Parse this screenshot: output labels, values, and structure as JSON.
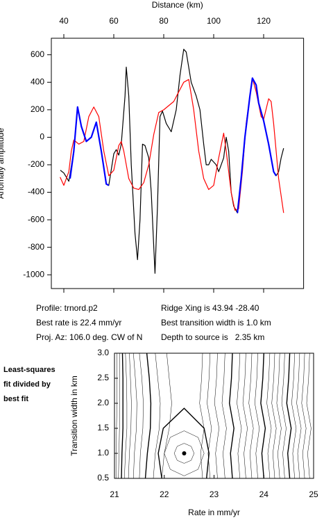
{
  "chart_data": [
    {
      "type": "line",
      "x_label": "Distance (km)",
      "y_label": "Anomaly amplitude",
      "xlim": [
        35,
        136
      ],
      "ylim": [
        -1100,
        720
      ],
      "xticks": [
        40,
        60,
        80,
        100,
        120
      ],
      "yticks": [
        -1000,
        -800,
        -600,
        -400,
        -200,
        0,
        200,
        400,
        600
      ],
      "series": [
        {
          "color": "#000000",
          "x": [
            38.6,
            40,
            42,
            44,
            45.5,
            47,
            49,
            51,
            53,
            55,
            57,
            58,
            60,
            61,
            62,
            63,
            64.5,
            65,
            66,
            67,
            68.5,
            69.5,
            70.5,
            71.5,
            72.5,
            74,
            75,
            76.5,
            77.5,
            78.5,
            79.5,
            81,
            83,
            85,
            86.5,
            88,
            89,
            91,
            93,
            94.5,
            96,
            97,
            98,
            99,
            101,
            102,
            104,
            105,
            106,
            107,
            108,
            109.5,
            111,
            112.5,
            114.5,
            115.5,
            117,
            118,
            120,
            122,
            124,
            125,
            126,
            127,
            128
          ],
          "values": [
            -240,
            -260,
            -320,
            -100,
            220,
            80,
            -30,
            0,
            110,
            -100,
            -340,
            -350,
            -120,
            -90,
            -130,
            -50,
            300,
            510,
            300,
            -200,
            -700,
            -890,
            -600,
            -50,
            -60,
            -150,
            -400,
            -990,
            -500,
            150,
            190,
            100,
            40,
            200,
            450,
            640,
            620,
            400,
            300,
            200,
            -50,
            -200,
            -200,
            -160,
            -200,
            -250,
            -150,
            0,
            -100,
            -400,
            -500,
            -550,
            -300,
            0,
            300,
            430,
            380,
            250,
            120,
            -50,
            -250,
            -280,
            -250,
            -150,
            -80
          ]
        },
        {
          "color": "#ff0000",
          "x": [
            38.5,
            40,
            42,
            43,
            44,
            46,
            48,
            50,
            52,
            54,
            56,
            58,
            60,
            62,
            63,
            64,
            66,
            68,
            70,
            72,
            74,
            76,
            78,
            80,
            84,
            88,
            90,
            92,
            94,
            96,
            98,
            100,
            102,
            104,
            105,
            107,
            108.5,
            110,
            111.5,
            113,
            115.5,
            117,
            119,
            120,
            122,
            123,
            124,
            126,
            128
          ],
          "values": [
            -290,
            -350,
            -250,
            -100,
            -20,
            -50,
            -30,
            150,
            220,
            150,
            -100,
            -280,
            -240,
            -60,
            -30,
            -100,
            -300,
            -370,
            -380,
            -330,
            -200,
            20,
            180,
            200,
            260,
            400,
            420,
            200,
            -100,
            -300,
            -380,
            -350,
            -150,
            30,
            -100,
            -400,
            -530,
            -520,
            -250,
            100,
            430,
            330,
            150,
            130,
            280,
            260,
            100,
            -300,
            -550
          ]
        },
        {
          "color": "#0000ff",
          "x": [
            42.5,
            44,
            45.5,
            47,
            49,
            51,
            53,
            55,
            57,
            58,
            60,
            109.5,
            111,
            112.5,
            114.5,
            115.5,
            117,
            118,
            120,
            122,
            124,
            125
          ],
          "values": [
            -300,
            -100,
            220,
            80,
            -30,
            0,
            110,
            -100,
            -340,
            -350,
            null,
            -550,
            -300,
            0,
            300,
            430,
            380,
            250,
            120,
            -50,
            -250,
            -280
          ]
        }
      ]
    },
    {
      "type": "contour",
      "x_label": "Rate in mm/yr",
      "y_label": "Transition width in km",
      "xlim": [
        21,
        25
      ],
      "ylim": [
        0.5,
        3.0
      ],
      "xticks": [
        21,
        22,
        23,
        24,
        25
      ],
      "yticks": [
        0.5,
        {
          "value": 1.0,
          "label": "1.0"
        },
        1.5,
        {
          "value": 2.0,
          "label": "2.0"
        },
        2.5,
        {
          "value": 3.0,
          "label": "3.0"
        }
      ],
      "points": {
        "x": [
          22.4
        ],
        "y": [
          1.0
        ]
      },
      "contours": [
        {
          "x": [
            21.03,
            21.03,
            21.04,
            21.05,
            21.05,
            21.05
          ],
          "y": [
            0.5,
            1,
            1.5,
            2,
            2.5,
            3
          ]
        },
        {
          "x": [
            21.08,
            21.09,
            21.1,
            21.1,
            21.1,
            21.1
          ],
          "y": [
            0.5,
            1,
            1.5,
            2,
            2.5,
            3
          ]
        },
        {
          "x": [
            21.14,
            21.15,
            21.17,
            21.17,
            21.17,
            21.16
          ],
          "y": [
            0.5,
            1,
            1.5,
            2,
            2.5,
            3
          ]
        },
        {
          "x": [
            21.2,
            21.22,
            21.25,
            21.25,
            21.24,
            21.22
          ],
          "y": [
            0.5,
            1,
            1.5,
            2,
            2.5,
            3
          ]
        },
        {
          "x": [
            21.28,
            21.3,
            21.33,
            21.34,
            21.32,
            21.3
          ],
          "y": [
            0.5,
            1,
            1.5,
            2,
            2.5,
            3
          ]
        },
        {
          "x": [
            21.38,
            21.4,
            21.44,
            21.45,
            21.42,
            21.38
          ],
          "y": [
            0.5,
            1,
            1.5,
            2,
            2.5,
            3
          ]
        },
        {
          "x": [
            21.5,
            21.52,
            21.57,
            21.58,
            21.55,
            21.5
          ],
          "y": [
            0.5,
            1,
            1.5,
            2,
            2.5,
            3
          ]
        },
        {
          "x": [
            21.62,
            21.66,
            21.72,
            21.73,
            21.7,
            21.65
          ],
          "y": [
            0.5,
            1,
            1.5,
            2,
            2.5,
            3
          ]
        },
        {
          "x": [
            21.78,
            21.82,
            21.9,
            21.92,
            21.87,
            21.82
          ],
          "y": [
            0.5,
            1,
            1.5,
            2,
            2.5,
            3
          ]
        },
        {
          "x": [
            21.95,
            22.0,
            22.1,
            22.15,
            22.1,
            22.05
          ],
          "y": [
            0.5,
            1,
            1.5,
            2,
            2.5,
            3
          ]
        },
        {
          "x": [
            22.6,
            22.54,
            22.4,
            22.26,
            22.2,
            22.26,
            22.4,
            22.54,
            22.6
          ],
          "y": [
            1.0,
            1.14,
            1.2,
            1.14,
            1.0,
            0.86,
            0.8,
            0.86,
            1.0
          ]
        },
        {
          "x": [
            22.8,
            22.68,
            22.4,
            22.12,
            22.0,
            22.12,
            22.4,
            22.68,
            22.8
          ],
          "y": [
            1.0,
            1.32,
            1.45,
            1.32,
            1.0,
            0.68,
            0.55,
            0.68,
            1.0
          ]
        },
        {
          "x": [
            21.95,
            21.88,
            21.98,
            22.4,
            22.8,
            22.9,
            22.85
          ],
          "y": [
            0.5,
            1.0,
            1.5,
            1.9,
            1.5,
            1.0,
            0.5
          ]
        },
        {
          "x": [
            22.77,
            22.73,
            22.8,
            22.71,
            22.75,
            22.77
          ],
          "y": [
            0.5,
            1,
            1.5,
            2,
            2.5,
            3
          ]
        },
        {
          "x": [
            22.92,
            22.88,
            22.95,
            22.86,
            22.9,
            22.92
          ],
          "y": [
            0.5,
            1,
            1.5,
            2,
            2.5,
            3
          ]
        },
        {
          "x": [
            23.07,
            23.03,
            23.1,
            23.01,
            23.05,
            23.07
          ],
          "y": [
            0.5,
            1,
            1.5,
            2,
            2.5,
            3
          ]
        },
        {
          "x": [
            23.22,
            23.18,
            23.25,
            23.16,
            23.2,
            23.22
          ],
          "y": [
            0.5,
            1,
            1.5,
            2,
            2.5,
            3
          ]
        },
        {
          "x": [
            23.37,
            23.33,
            23.4,
            23.31,
            23.35,
            23.37
          ],
          "y": [
            0.5,
            1,
            1.5,
            2,
            2.5,
            3
          ]
        },
        {
          "x": [
            23.52,
            23.48,
            23.55,
            23.46,
            23.5,
            23.52
          ],
          "y": [
            0.5,
            1,
            1.5,
            2,
            2.5,
            3
          ]
        },
        {
          "x": [
            23.64,
            23.6,
            23.67,
            23.58,
            23.62,
            23.64
          ],
          "y": [
            0.5,
            1,
            1.5,
            2,
            2.5,
            3
          ]
        },
        {
          "x": [
            23.76,
            23.72,
            23.79,
            23.7,
            23.74,
            23.76
          ],
          "y": [
            0.5,
            1,
            1.5,
            2,
            2.5,
            3
          ]
        },
        {
          "x": [
            23.88,
            23.84,
            23.91,
            23.82,
            23.86,
            23.88
          ],
          "y": [
            0.5,
            1,
            1.5,
            2,
            2.5,
            3
          ]
        },
        {
          "x": [
            24.0,
            23.96,
            24.03,
            23.94,
            23.98,
            24.0
          ],
          "y": [
            0.5,
            1,
            1.5,
            2,
            2.5,
            3
          ]
        },
        {
          "x": [
            24.12,
            24.08,
            24.15,
            24.06,
            24.1,
            24.12
          ],
          "y": [
            0.5,
            1,
            1.5,
            2,
            2.5,
            3
          ]
        },
        {
          "x": [
            24.22,
            24.18,
            24.25,
            24.16,
            24.2,
            24.22
          ],
          "y": [
            0.5,
            1,
            1.5,
            2,
            2.5,
            3
          ]
        },
        {
          "x": [
            24.32,
            24.28,
            24.35,
            24.26,
            24.3,
            24.32
          ],
          "y": [
            0.5,
            1,
            1.5,
            2,
            2.5,
            3
          ]
        },
        {
          "x": [
            24.42,
            24.38,
            24.45,
            24.36,
            24.4,
            24.42
          ],
          "y": [
            0.5,
            1,
            1.5,
            2,
            2.5,
            3
          ]
        },
        {
          "x": [
            24.52,
            24.48,
            24.55,
            24.46,
            24.5,
            24.52
          ],
          "y": [
            0.5,
            1,
            1.5,
            2,
            2.5,
            3
          ]
        },
        {
          "x": [
            24.62,
            24.58,
            24.65,
            24.56,
            24.6,
            24.62
          ],
          "y": [
            0.5,
            1,
            1.5,
            2,
            2.5,
            3
          ]
        },
        {
          "x": [
            24.72,
            24.68,
            24.75,
            24.66,
            24.7,
            24.72
          ],
          "y": [
            0.5,
            1,
            1.5,
            2,
            2.5,
            3
          ]
        },
        {
          "x": [
            24.82,
            24.78,
            24.85,
            24.76,
            24.8,
            24.82
          ],
          "y": [
            0.5,
            1,
            1.5,
            2,
            2.5,
            3
          ]
        },
        {
          "x": [
            24.92,
            24.88,
            24.95,
            24.86,
            24.9,
            24.92
          ],
          "y": [
            0.5,
            1,
            1.5,
            2,
            2.5,
            3
          ]
        }
      ]
    }
  ],
  "info": {
    "left": [
      "Profile: trnord.p2",
      "Best rate is 22.4 mm/yr",
      "Proj. Az: 106.0 deg. CW of N"
    ],
    "right": [
      "Ridge Xing is 43.94 -28.40",
      "Best transition width is 1.0 km",
      "Depth to source is   2.35 km"
    ]
  },
  "side_note": [
    "Least-squares",
    "fit divided by",
    "best fit"
  ]
}
